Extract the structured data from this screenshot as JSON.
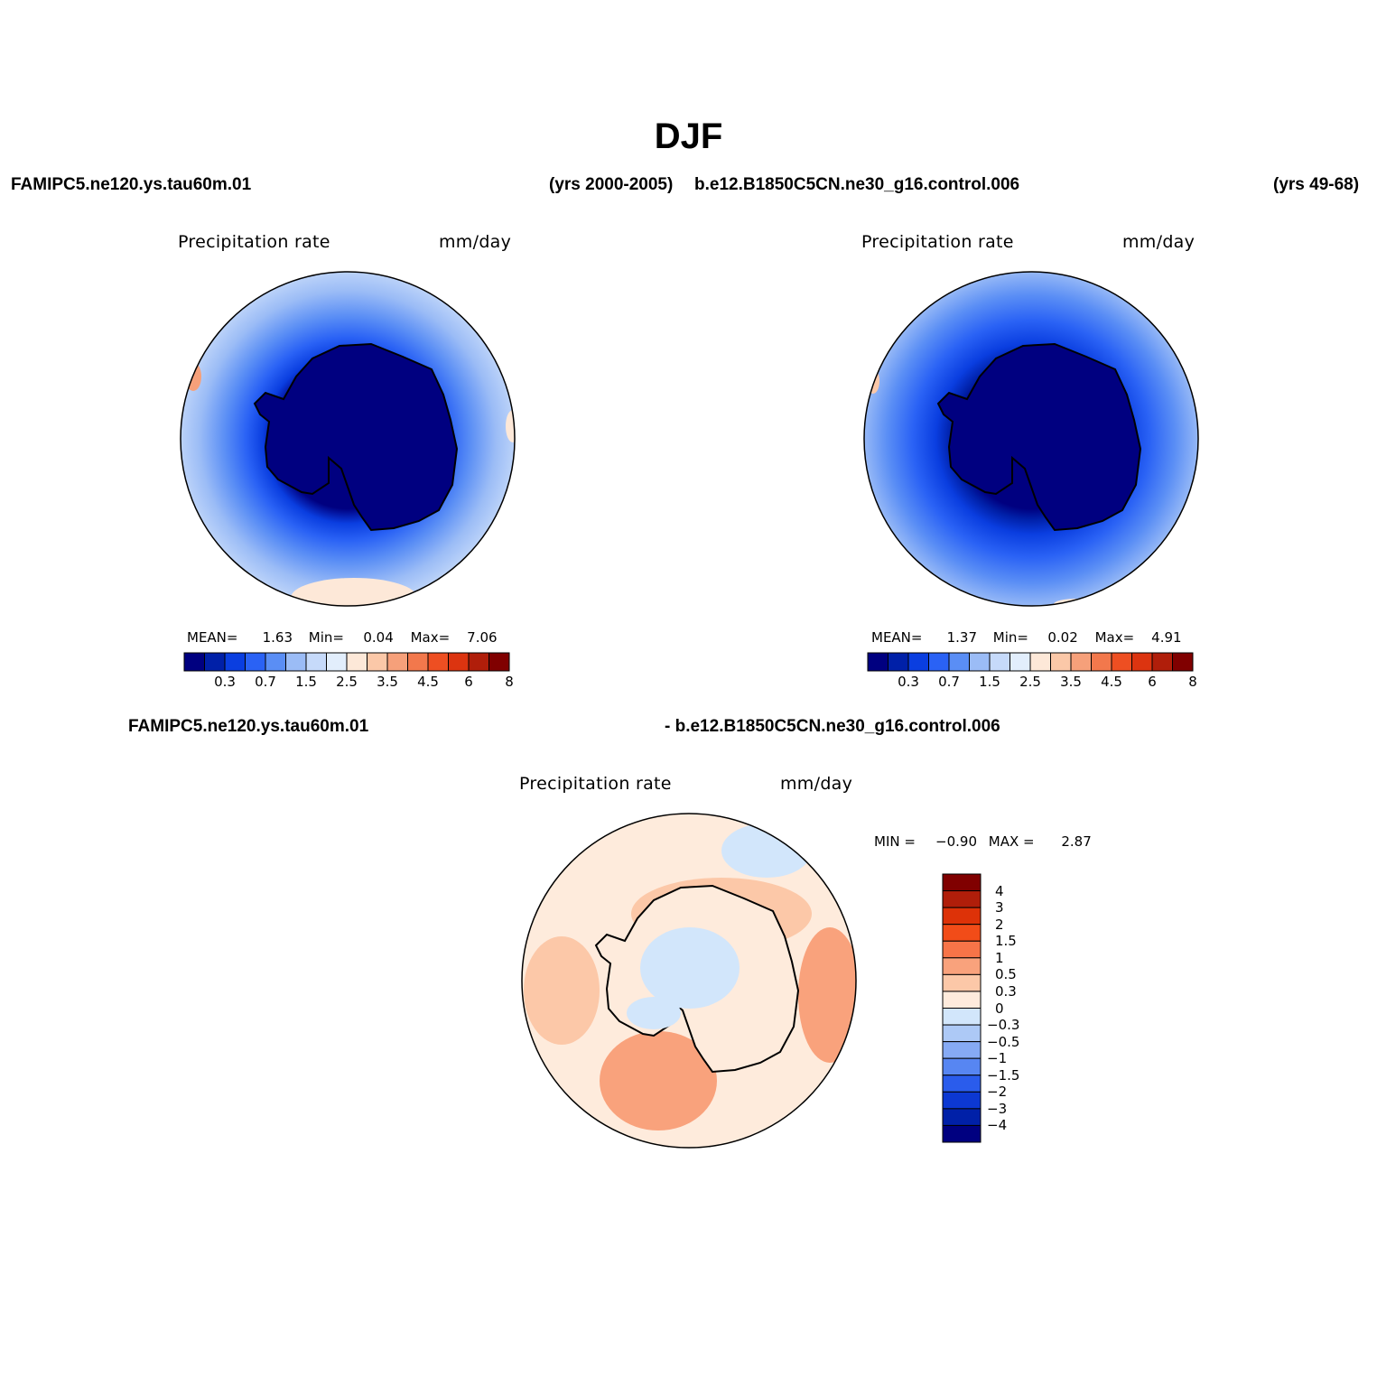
{
  "title": "DJF",
  "header": {
    "case1": "FAMIPC5.ne120.ys.tau60m.01",
    "case1_years": "(yrs 2000-2005)",
    "case2": "b.e12.B1850C5CN.ne30_g16.control.006",
    "case2_years": "(yrs 49-68)"
  },
  "diff_header": {
    "left": "FAMIPC5.ne120.ys.tau60m.01",
    "right": "- b.e12.B1850C5CN.ne30_g16.control.006"
  },
  "panels": [
    {
      "variable": "Precipitation rate",
      "units": "mm/day",
      "stats": {
        "mean_label": "MEAN=",
        "mean": "1.63",
        "min_label": "Min=",
        "min": "0.04",
        "max_label": "Max=",
        "max": "7.06"
      }
    },
    {
      "variable": "Precipitation rate",
      "units": "mm/day",
      "stats": {
        "mean_label": "MEAN=",
        "mean": "1.37",
        "min_label": "Min=",
        "min": "0.02",
        "max_label": "Max=",
        "max": "4.91"
      }
    }
  ],
  "diff_panel": {
    "variable": "Precipitation rate",
    "units": "mm/day",
    "stats": {
      "min_label": "MIN =",
      "min": "−0.90",
      "max_label": "MAX =",
      "max": "2.87"
    }
  },
  "colorbar_abs": {
    "colors": [
      "#000080",
      "#0020a8",
      "#0a3ee0",
      "#2a62f5",
      "#5a8ef5",
      "#9bbcf6",
      "#c6dafa",
      "#e2eefc",
      "#fde8d8",
      "#fbc8a8",
      "#f6a07a",
      "#f2784c",
      "#ee4f22",
      "#dc3410",
      "#b01e0a",
      "#800000"
    ],
    "tick_labels": [
      "0.3",
      "0.7",
      "1.5",
      "2.5",
      "3.5",
      "4.5",
      "6",
      "8"
    ]
  },
  "colorbar_diff": {
    "colors": [
      "#800000",
      "#b01e0a",
      "#dd3208",
      "#f24c18",
      "#f77448",
      "#f9a27c",
      "#fcc8a8",
      "#feebdc",
      "#d2e6fb",
      "#adc9f6",
      "#86aaf4",
      "#5786f2",
      "#2a5cec",
      "#0c38d2",
      "#0020a8",
      "#000080"
    ],
    "tick_labels": [
      "4",
      "3",
      "2",
      "1.5",
      "1",
      "0.5",
      "0.3",
      "0",
      "−0.3",
      "−0.5",
      "−1",
      "−1.5",
      "−2",
      "−3",
      "−4"
    ]
  }
}
